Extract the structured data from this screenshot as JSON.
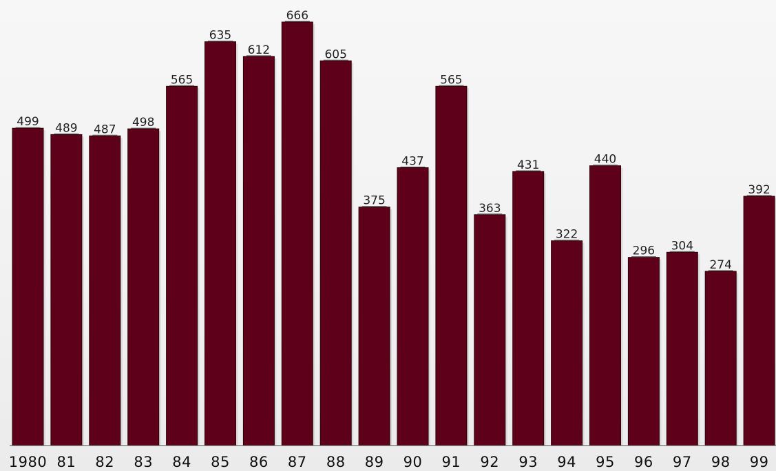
{
  "chart_data": {
    "type": "bar",
    "categories": [
      "1980",
      "81",
      "82",
      "83",
      "84",
      "85",
      "86",
      "87",
      "88",
      "89",
      "90",
      "91",
      "92",
      "93",
      "94",
      "95",
      "96",
      "97",
      "98",
      "99"
    ],
    "values": [
      499,
      489,
      487,
      498,
      565,
      635,
      612,
      666,
      605,
      375,
      437,
      565,
      363,
      431,
      322,
      440,
      296,
      304,
      274,
      392
    ],
    "ylim": [
      0,
      666
    ],
    "grid": false,
    "legend": "none",
    "colors": {
      "bar": "#5e0019",
      "bar_outline": "#2d0008",
      "label": "#222222"
    }
  }
}
